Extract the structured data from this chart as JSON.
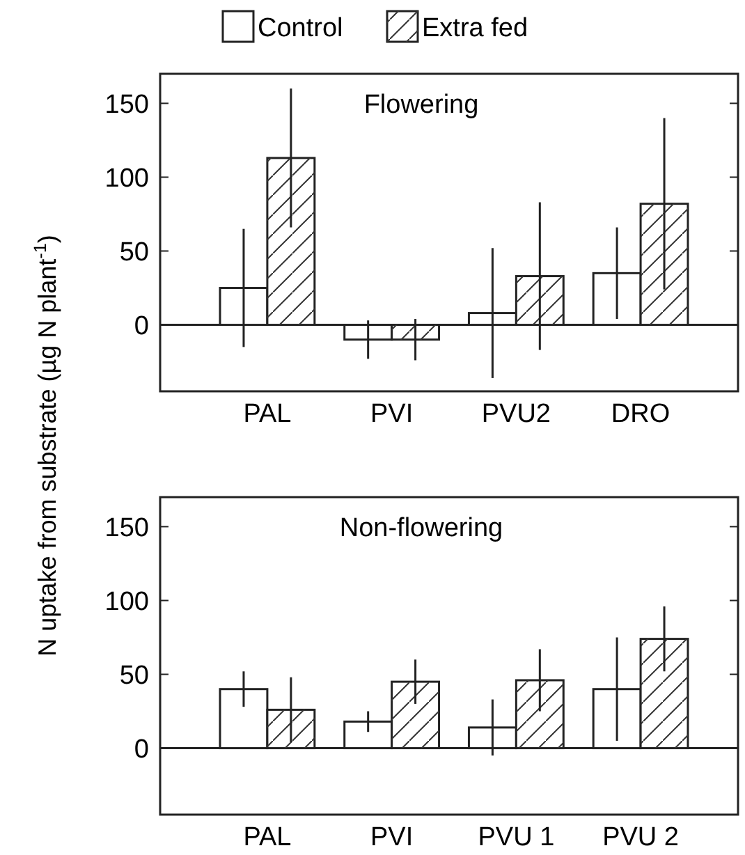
{
  "chart_data": [
    {
      "type": "bar",
      "title": "Flowering",
      "ylabel": "N uptake from substrate (µg N plant$^{-1}$)",
      "categories": [
        "PAL",
        "PVI",
        "PVU2",
        "DRO"
      ],
      "legend": "top",
      "series": [
        {
          "name": "Control",
          "color": "#ffffff",
          "values": [
            25,
            -10,
            8,
            35
          ],
          "errors": [
            40,
            13,
            44,
            31
          ]
        },
        {
          "name": "Extra fed",
          "color": "#ffffff",
          "values": [
            113,
            -10,
            33,
            82
          ],
          "errors": [
            47,
            14,
            50,
            58
          ]
        }
      ],
      "ylim": [
        -45,
        170
      ],
      "yticks": [
        0,
        50,
        100,
        150
      ]
    },
    {
      "type": "bar",
      "title": "Non-flowering",
      "categories": [
        "PAL",
        "PVI",
        "PVU 1",
        "PVU 2"
      ],
      "series": [
        {
          "color": "#ffffff",
          "values": [
            40,
            18,
            14,
            40
          ],
          "errors": [
            12,
            7,
            19,
            35
          ]
        },
        {
          "color": "#ffffff",
          "values": [
            26,
            45,
            46,
            74
          ],
          "errors": [
            22,
            15,
            21,
            22
          ]
        }
      ],
      "ylim": [
        -45,
        170
      ],
      "yticks": [
        0,
        50,
        100,
        150
      ]
    }
  ]
}
